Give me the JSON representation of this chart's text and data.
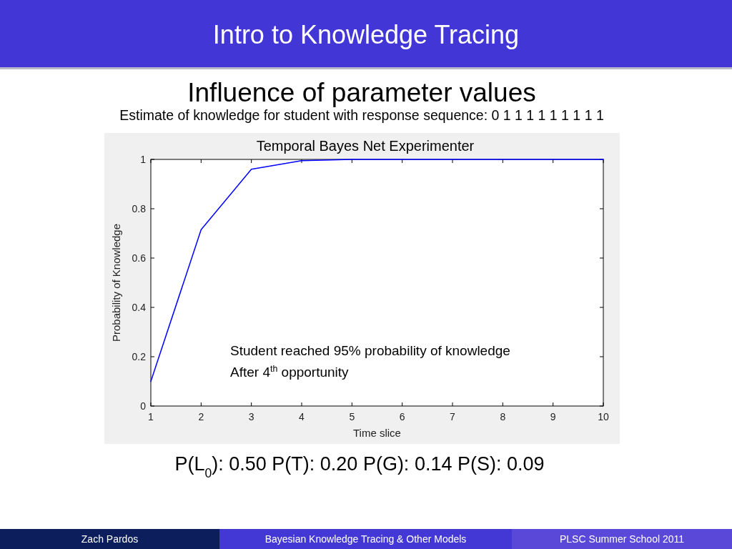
{
  "chart_data": {
    "type": "line",
    "title": "Influence of parameter values",
    "subtitle": "Estimate of knowledge for student with response sequence: 0 1 1 1 1 1 1 1 1 1",
    "x": [
      1,
      2,
      3,
      4,
      5,
      6,
      7,
      8,
      9,
      10
    ],
    "series": [
      {
        "color": "#0000ff",
        "values": [
          0.1,
          0.715,
          0.96,
          0.995,
          1,
          1,
          1,
          1,
          1,
          1
        ]
      }
    ],
    "xlim": [
      1,
      10
    ],
    "ylim": [
      0,
      1
    ],
    "xticks": [
      1,
      2,
      3,
      4,
      5,
      6,
      7,
      8,
      9,
      10
    ],
    "yticks": [
      0,
      0.2,
      0.4,
      0.6,
      0.8,
      1
    ],
    "xlabel": "Time slice",
    "ylabel": "Probability of Knowledge",
    "grid": false,
    "marker": "none",
    "line_style": "solid",
    "annotations": [
      "Intro to Knowledge Tracing",
      "Temporal Bayes Net Experimenter",
      "Student reached 95% probability of knowledge\nAfter 4$^{th}$ opportunity",
      "P(L$_{0}$): 0.50  P(T): 0.20  P(G): 0.14  P(S): 0.09",
      "Zach Pardos",
      "Bayesian Knowledge Tracing & Other Models",
      "PLSC Summer School 2011"
    ]
  }
}
